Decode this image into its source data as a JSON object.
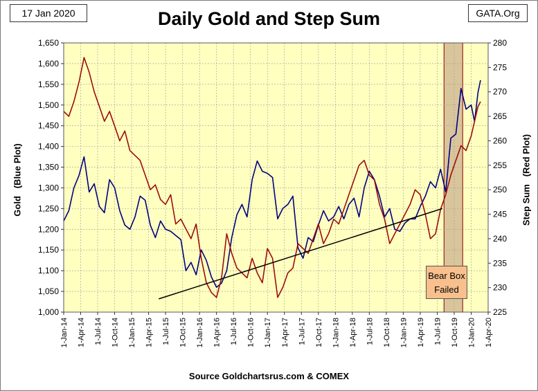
{
  "date_label": "17 Jan 2020",
  "source_label": "GATA.Org",
  "footer": "Source Goldchartsrus.com & COMEX",
  "chart_data": {
    "type": "line",
    "title": "Daily Gold and Step Sum",
    "ylabel_left": "Gold   (Blue Plot)",
    "ylabel_right": "Step Sum   (Red Plot)",
    "ylim_left": [
      1000,
      1650
    ],
    "yticks_left": [
      1000,
      1050,
      1100,
      1150,
      1200,
      1250,
      1300,
      1350,
      1400,
      1450,
      1500,
      1550,
      1600,
      1650
    ],
    "ylim_right": [
      225,
      280
    ],
    "yticks_right": [
      225,
      230,
      235,
      240,
      245,
      250,
      255,
      260,
      265,
      270,
      275,
      280
    ],
    "xlim": [
      0,
      25
    ],
    "x_tick_labels": [
      "1-Jan-14",
      "1-Apr-14",
      "1-Jul-14",
      "1-Oct-14",
      "1-Jan-15",
      "1-Apr-15",
      "1-Jul-15",
      "1-Oct-15",
      "1-Jan-16",
      "1-Apr-16",
      "1-Jul-16",
      "1-Oct-16",
      "1-Jan-17",
      "1-Apr-17",
      "1-Jul-17",
      "1-Oct-17",
      "1-Jan-18",
      "1-Apr-18",
      "1-Jul-18",
      "1-Oct-18",
      "1-Jan-19",
      "1-Apr-19",
      "1-Jul-19",
      "1-Oct-19",
      "1-Jan-20",
      "1-Apr-20"
    ],
    "grid": true,
    "colors": {
      "plot_bg": "#ffffc0",
      "gold": "#000080",
      "step": "#9b0d0d",
      "trend": "#000000",
      "shade": "#d9c59b"
    },
    "series": [
      {
        "name": "Gold",
        "axis": "left",
        "color": "#000080",
        "x": [
          0,
          0.3,
          0.6,
          0.9,
          1.2,
          1.5,
          1.8,
          2.1,
          2.4,
          2.7,
          3.0,
          3.3,
          3.6,
          3.9,
          4.2,
          4.5,
          4.8,
          5.1,
          5.4,
          5.7,
          6.0,
          6.3,
          6.6,
          6.9,
          7.2,
          7.5,
          7.8,
          8.1,
          8.4,
          8.7,
          9.0,
          9.3,
          9.6,
          9.9,
          10.2,
          10.5,
          10.8,
          11.1,
          11.4,
          11.7,
          12.0,
          12.3,
          12.6,
          12.9,
          13.2,
          13.5,
          13.8,
          14.1,
          14.4,
          14.7,
          15.0,
          15.3,
          15.6,
          15.9,
          16.2,
          16.5,
          16.8,
          17.1,
          17.4,
          17.7,
          18.0,
          18.3,
          18.6,
          18.9,
          19.2,
          19.5,
          19.8,
          20.1,
          20.4,
          20.7,
          21.0,
          21.3,
          21.6,
          21.9,
          22.2,
          22.5,
          22.8,
          23.1,
          23.4,
          23.7,
          24.0,
          24.2,
          24.4,
          24.55
        ],
        "values": [
          1220,
          1245,
          1300,
          1330,
          1375,
          1290,
          1310,
          1255,
          1240,
          1320,
          1300,
          1245,
          1210,
          1200,
          1230,
          1280,
          1270,
          1210,
          1180,
          1220,
          1200,
          1195,
          1185,
          1175,
          1100,
          1120,
          1090,
          1150,
          1125,
          1085,
          1060,
          1070,
          1100,
          1180,
          1235,
          1260,
          1230,
          1320,
          1365,
          1340,
          1335,
          1325,
          1225,
          1250,
          1260,
          1280,
          1155,
          1130,
          1180,
          1170,
          1210,
          1245,
          1220,
          1230,
          1255,
          1225,
          1260,
          1275,
          1230,
          1300,
          1340,
          1320,
          1280,
          1230,
          1250,
          1200,
          1195,
          1215,
          1225,
          1225,
          1255,
          1280,
          1315,
          1300,
          1345,
          1290,
          1420,
          1430,
          1540,
          1490,
          1500,
          1460,
          1530,
          1560
        ]
      },
      {
        "name": "Step Sum",
        "axis": "right",
        "color": "#9b0d0d",
        "x": [
          0,
          0.3,
          0.6,
          0.9,
          1.2,
          1.5,
          1.8,
          2.1,
          2.4,
          2.7,
          3.0,
          3.3,
          3.6,
          3.9,
          4.2,
          4.5,
          4.8,
          5.1,
          5.4,
          5.7,
          6.0,
          6.3,
          6.6,
          6.9,
          7.2,
          7.5,
          7.8,
          8.1,
          8.4,
          8.7,
          9.0,
          9.3,
          9.6,
          9.9,
          10.2,
          10.5,
          10.8,
          11.1,
          11.4,
          11.7,
          12.0,
          12.3,
          12.6,
          12.9,
          13.2,
          13.5,
          13.8,
          14.1,
          14.4,
          14.7,
          15.0,
          15.3,
          15.6,
          15.9,
          16.2,
          16.5,
          16.8,
          17.1,
          17.4,
          17.7,
          18.0,
          18.3,
          18.6,
          18.9,
          19.2,
          19.5,
          19.8,
          20.1,
          20.4,
          20.7,
          21.0,
          21.3,
          21.6,
          21.9,
          22.2,
          22.5,
          22.8,
          23.1,
          23.4,
          23.7,
          24.0,
          24.2,
          24.4,
          24.55
        ],
        "values": [
          266,
          265,
          268,
          272,
          277,
          274,
          270,
          267,
          264,
          266,
          263,
          260,
          262,
          258,
          257,
          256,
          253,
          250,
          251,
          248,
          247,
          249,
          243,
          244,
          242,
          240,
          243,
          236,
          231,
          229,
          228,
          232,
          241,
          237,
          234,
          233,
          232,
          236,
          233,
          231,
          238,
          236,
          228,
          230,
          233,
          234,
          239,
          238,
          237,
          240,
          243,
          239,
          241,
          244,
          243,
          246,
          249,
          252,
          255,
          256,
          253,
          252,
          247,
          244,
          239,
          241,
          243,
          245,
          247,
          250,
          249,
          245,
          240,
          241,
          246,
          249,
          253,
          256,
          259,
          258,
          261,
          264,
          267,
          268
        ]
      }
    ],
    "trend_line": {
      "x": [
        5.6,
        22.3
      ],
      "y": [
        1032,
        1250
      ]
    },
    "shade_region": {
      "x": [
        22.4,
        23.5
      ]
    },
    "annotation": {
      "line1": "Bear Box",
      "line2": "Failed"
    }
  }
}
